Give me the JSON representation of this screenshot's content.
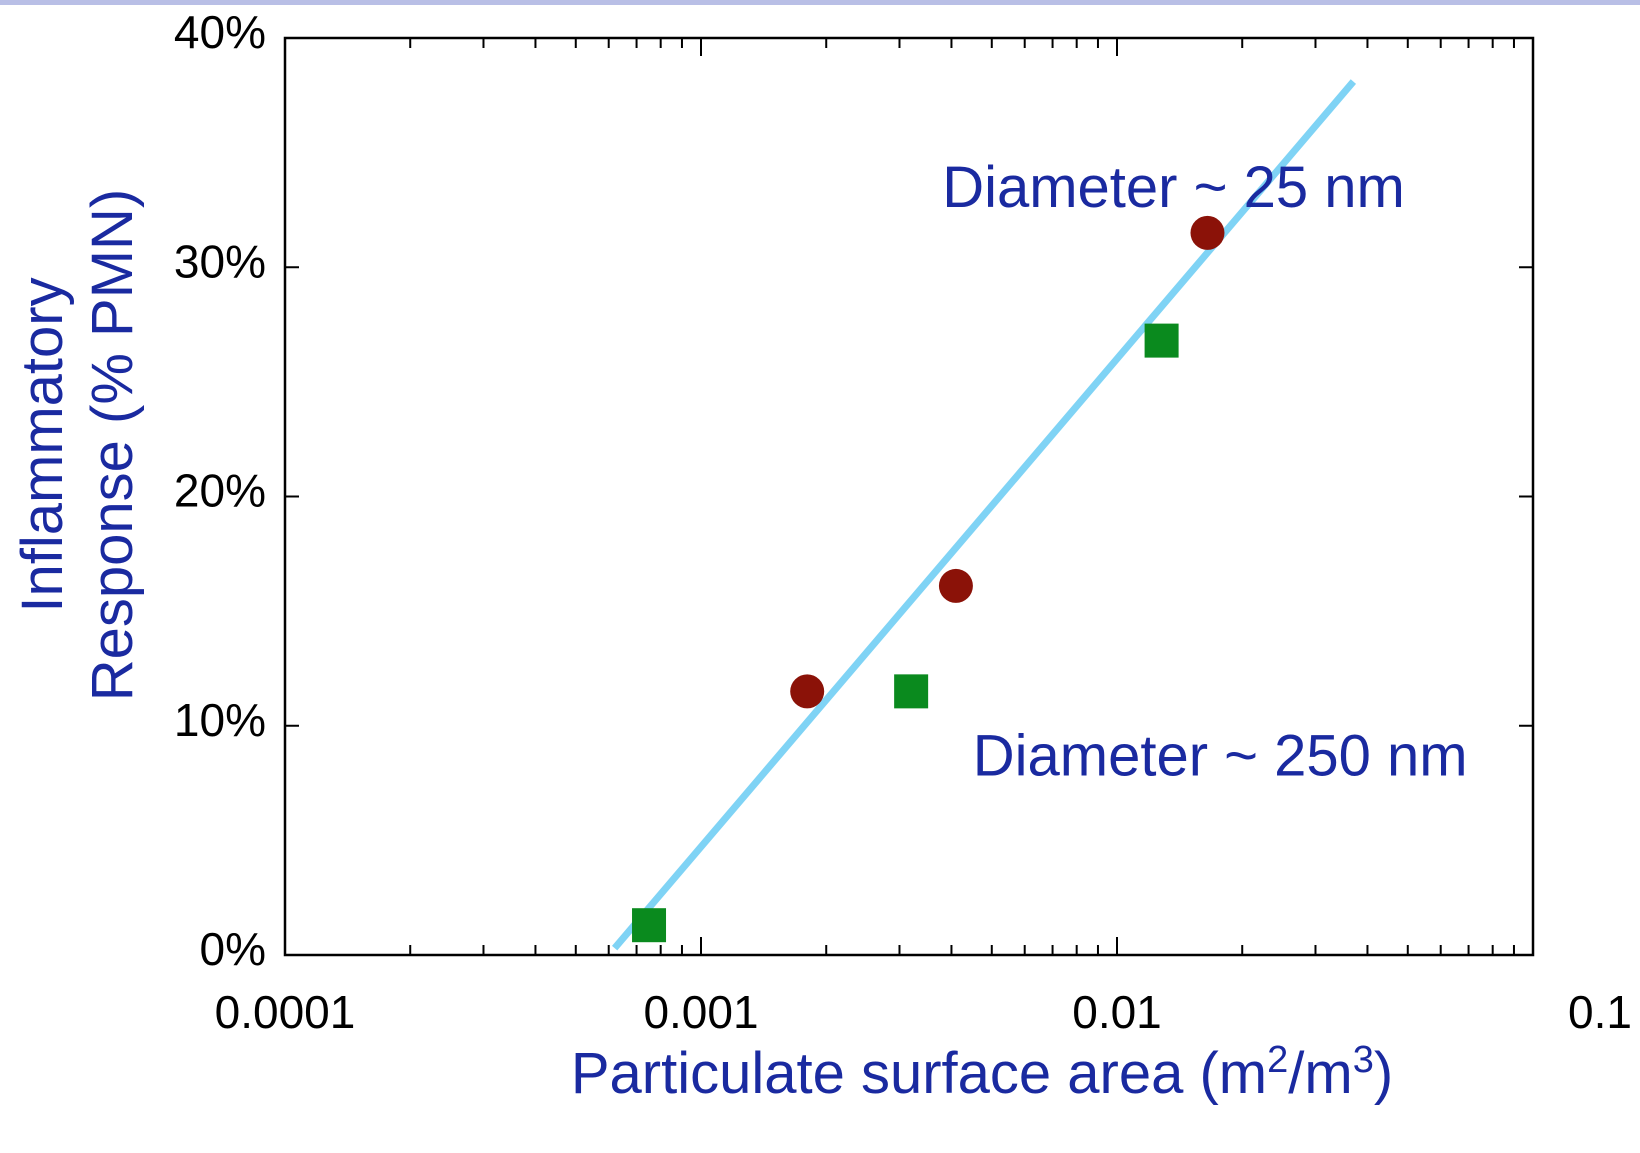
{
  "colors": {
    "frame": "#000000",
    "title_text": "#1a2aa0",
    "fit_line": "#7fd3f5",
    "series_25nm": "#8b1208",
    "series_250nm": "#0a8a1e",
    "top_rule": "#b9bfe6"
  },
  "chart_data": {
    "type": "scatter",
    "xlabel": "Particulate surface area (m²/m³)",
    "xlabel_parts": {
      "main": "Particulate surface area (m",
      "sup1": "2",
      "mid": "/m",
      "sup2": "3",
      "end": ")"
    },
    "ylabel_lines": [
      "Inflammatory",
      "Response (% PMN)"
    ],
    "x_scale": "log",
    "xlim": [
      0.0001,
      0.1
    ],
    "ylim": [
      0,
      40
    ],
    "x_ticks": [
      0.0001,
      0.001,
      0.01,
      0.1
    ],
    "x_tick_labels": [
      "0.0001",
      "0.001",
      "0.01",
      "0.1"
    ],
    "y_ticks": [
      0,
      10,
      20,
      30,
      40
    ],
    "y_tick_labels": [
      "0%",
      "10%",
      "20%",
      "30%",
      "40%"
    ],
    "grid": false,
    "series": [
      {
        "marker": "circle",
        "color": "#8b1208",
        "points": [
          [
            0.0018,
            11.5
          ],
          [
            0.0041,
            16.1
          ],
          [
            0.0165,
            31.5
          ]
        ]
      },
      {
        "marker": "square",
        "color": "#0a8a1e",
        "points": [
          [
            0.00075,
            1.3
          ],
          [
            0.0032,
            11.5
          ],
          [
            0.0128,
            26.8
          ]
        ]
      }
    ],
    "fit_line": {
      "color": "#7fd3f5",
      "points": [
        [
          0.00062,
          0.3
        ],
        [
          0.037,
          38.1
        ]
      ]
    },
    "annotations": [
      {
        "text": "Diameter ~ 25 nm",
        "x": 0.0038,
        "y": 33.5
      },
      {
        "text": "Diameter ~ 250 nm",
        "x": 0.0045,
        "y": 8.7
      }
    ]
  }
}
